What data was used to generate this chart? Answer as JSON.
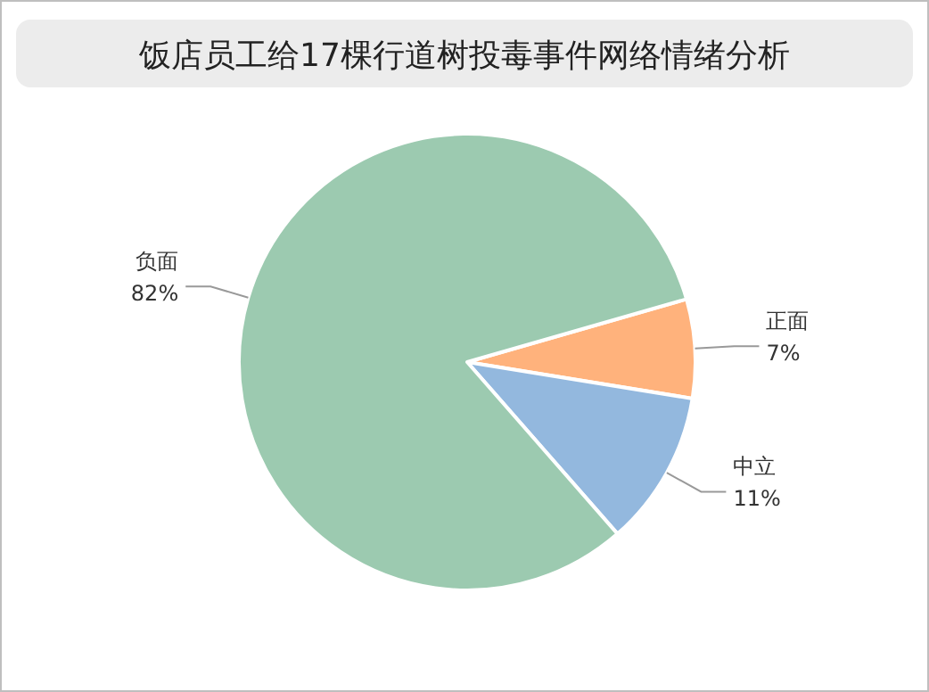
{
  "chart_data": {
    "type": "pie",
    "title": "饭店员工给17棵行道树投毒事件网络情绪分析",
    "categories": [
      "正面",
      "中立",
      "负面"
    ],
    "values": [
      7,
      11,
      82
    ],
    "colors": [
      "#ffb27c",
      "#93b8de",
      "#9ccab0"
    ],
    "value_labels": [
      "7%",
      "11%",
      "82%"
    ]
  }
}
